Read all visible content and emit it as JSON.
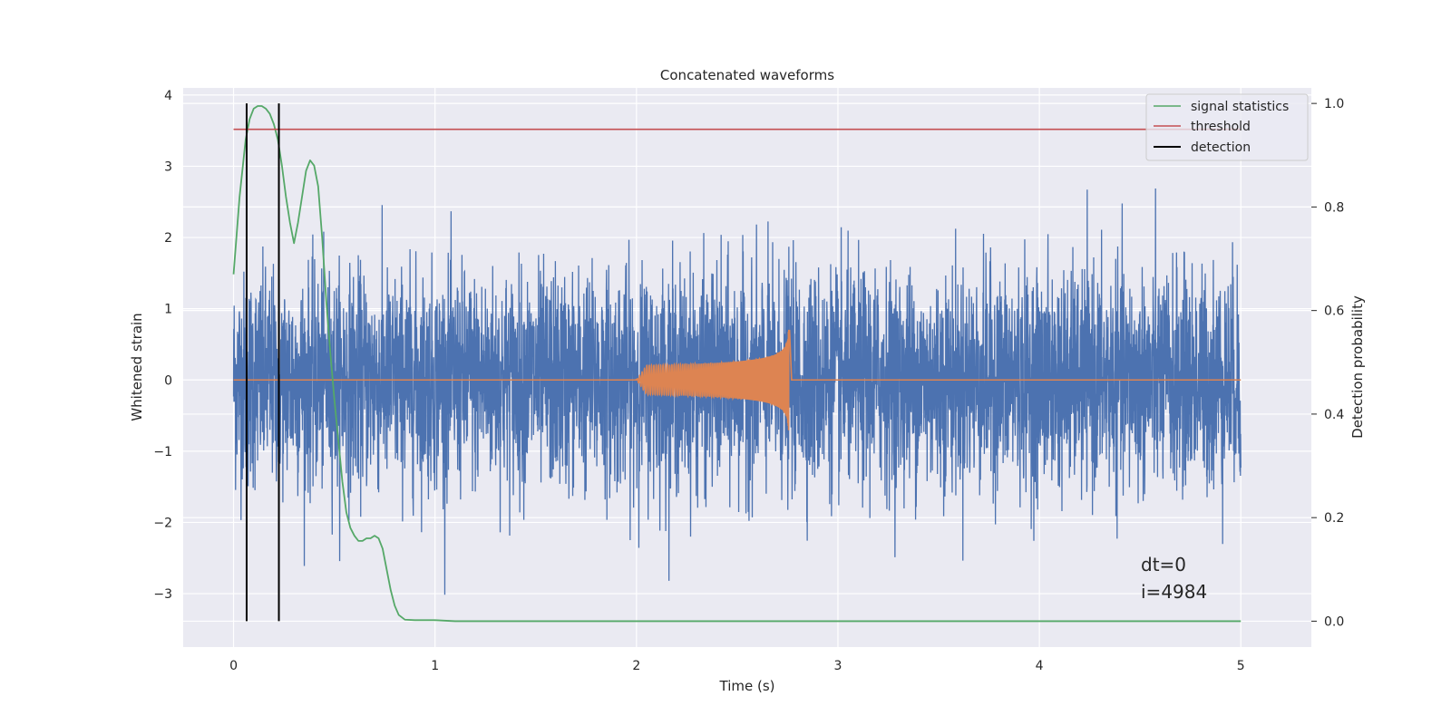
{
  "chart_data": {
    "type": "line",
    "title": "Concatenated waveforms",
    "xlabel": "Time (s)",
    "ylabel": "Whitened strain",
    "ylabel_right": "Detection probability",
    "xlim": [
      -0.25,
      5.35
    ],
    "ylim": [
      -3.75,
      4.1
    ],
    "ylim_right": [
      -0.05,
      1.03
    ],
    "xticks": [
      0,
      1,
      2,
      3,
      4,
      5
    ],
    "yticks": [
      -3,
      -2,
      -1,
      0,
      1,
      2,
      3,
      4
    ],
    "yticks_right": [
      0.0,
      0.2,
      0.4,
      0.6,
      0.8,
      1.0
    ],
    "xtick_labels": [
      "0",
      "1",
      "2",
      "3",
      "4",
      "5"
    ],
    "ytick_labels": [
      "−3",
      "−2",
      "−1",
      "0",
      "1",
      "2",
      "3",
      "4"
    ],
    "ytick_right_labels": [
      "0.0",
      "0.2",
      "0.4",
      "0.6",
      "0.8",
      "1.0"
    ],
    "grid": true,
    "background": "#eaeaf2",
    "legend_position": "top-right",
    "series": [
      {
        "name": "signal statistics",
        "axis": "right",
        "color": "#55a868",
        "x": [
          0.0,
          0.03,
          0.06,
          0.08,
          0.1,
          0.12,
          0.14,
          0.16,
          0.18,
          0.2,
          0.22,
          0.24,
          0.26,
          0.28,
          0.3,
          0.32,
          0.34,
          0.36,
          0.38,
          0.4,
          0.42,
          0.44,
          0.46,
          0.48,
          0.5,
          0.52,
          0.54,
          0.56,
          0.58,
          0.6,
          0.62,
          0.64,
          0.66,
          0.68,
          0.7,
          0.72,
          0.74,
          0.76,
          0.78,
          0.8,
          0.82,
          0.85,
          0.9,
          1.0,
          1.1,
          1.5,
          2.0,
          3.0,
          4.0,
          5.0
        ],
        "y": [
          0.67,
          0.82,
          0.93,
          0.97,
          0.99,
          0.995,
          0.995,
          0.99,
          0.98,
          0.96,
          0.93,
          0.88,
          0.82,
          0.77,
          0.73,
          0.77,
          0.82,
          0.87,
          0.89,
          0.88,
          0.84,
          0.74,
          0.62,
          0.52,
          0.43,
          0.35,
          0.27,
          0.21,
          0.18,
          0.165,
          0.155,
          0.155,
          0.16,
          0.16,
          0.165,
          0.16,
          0.14,
          0.1,
          0.06,
          0.03,
          0.012,
          0.003,
          0.002,
          0.002,
          0.0,
          0.0,
          0.0,
          0.0,
          0.0,
          0.0
        ]
      },
      {
        "name": "threshold",
        "axis": "right",
        "color": "#c44e52",
        "x": [
          0.0,
          5.0
        ],
        "y": [
          0.95,
          0.95
        ]
      },
      {
        "name": "detection",
        "axis": "right",
        "color": "#000000",
        "vlines_x": [
          0.065,
          0.225
        ],
        "ymin": 0.0,
        "ymax": 1.0
      },
      {
        "name": "",
        "axis": "left",
        "color": "#4c72b0",
        "kind": "noise",
        "x_range": [
          0.0,
          5.0
        ],
        "samples": 4984,
        "sigma": 0.75
      },
      {
        "name": "",
        "axis": "left",
        "color": "#dd8452",
        "kind": "chirp",
        "x_range": [
          0.0,
          5.0
        ],
        "chirp_start": 2.0,
        "chirp_end": 2.76,
        "peak_amplitude": 0.74
      }
    ],
    "annotations": [
      "dt=0",
      "i=4984"
    ]
  }
}
